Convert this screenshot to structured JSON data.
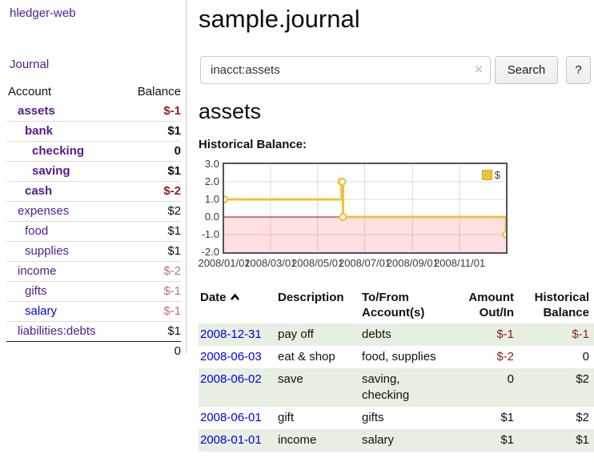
{
  "sidebar": {
    "brand": "hledger-web",
    "nav_journal": "Journal",
    "accounts_table": {
      "headers": {
        "account": "Account",
        "balance": "Balance"
      },
      "rows": [
        {
          "account": "assets",
          "balance": "$-1"
        },
        {
          "account": "bank",
          "balance": "$1"
        },
        {
          "account": "checking",
          "balance": "0"
        },
        {
          "account": "saving",
          "balance": "$1"
        },
        {
          "account": "cash",
          "balance": "$-2"
        },
        {
          "account": "expenses",
          "balance": "$2"
        },
        {
          "account": "food",
          "balance": "$1"
        },
        {
          "account": "supplies",
          "balance": "$1"
        },
        {
          "account": "income",
          "balance": "$-2"
        },
        {
          "account": "gifts",
          "balance": "$-1"
        },
        {
          "account": "salary",
          "balance": "$-1"
        },
        {
          "account": "liabilities:debts",
          "balance": "$1"
        }
      ],
      "total": "0"
    }
  },
  "main": {
    "title": "sample.journal",
    "search": {
      "value": "inacct:assets",
      "clear_icon": "×",
      "search_button": "Search",
      "help_button": "?"
    },
    "account_heading": "assets",
    "chart_label": "Historical Balance:"
  },
  "chart_data": {
    "type": "line",
    "style": "step",
    "title": "Historical Balance:",
    "xlim": [
      "2008/01/01",
      "2008/12/31"
    ],
    "ylim": [
      -2.0,
      3.0
    ],
    "y_ticks": [
      {
        "v": 3,
        "label": "3.0"
      },
      {
        "v": 2,
        "label": "2.0"
      },
      {
        "v": 1,
        "label": "1.0"
      },
      {
        "v": 0,
        "label": "0.0"
      },
      {
        "v": -1,
        "label": "-1.0"
      },
      {
        "v": -2,
        "label": "-2.0"
      }
    ],
    "x_ticks": [
      "2008/01/01",
      "2008/03/01",
      "2008/05/01",
      "2008/07/01",
      "2008/09/01",
      "2008/11/01"
    ],
    "series": [
      {
        "name": "$",
        "color": "#edc240",
        "points": [
          [
            "2008/01/01",
            1
          ],
          [
            "2008/06/01",
            2
          ],
          [
            "2008/06/02",
            2
          ],
          [
            "2008/06/03",
            0
          ],
          [
            "2008/12/31",
            -1
          ]
        ]
      }
    ],
    "legend_position": "top-right",
    "grid": true,
    "grid_color": "#dcdcdc",
    "zero_line_color": "#8b1010",
    "negative_region_fill": "rgba(255,0,0,0.12)"
  },
  "register_table": {
    "headers": {
      "date": "Date",
      "description": "Description",
      "accounts": "To/From Account(s)",
      "amount": "Amount Out/In",
      "balance": "Historical Balance"
    },
    "rows": [
      {
        "date": "2008-12-31",
        "description": "pay off",
        "accounts": "debts",
        "amount": "$-1",
        "balance": "$-1"
      },
      {
        "date": "2008-06-03",
        "description": "eat & shop",
        "accounts": "food, supplies",
        "amount": "$-2",
        "balance": "0"
      },
      {
        "date": "2008-06-02",
        "description": "save",
        "accounts": "saving, checking",
        "amount": "0",
        "balance": "$2"
      },
      {
        "date": "2008-06-01",
        "description": "gift",
        "accounts": "gifts",
        "amount": "$1",
        "balance": "$2"
      },
      {
        "date": "2008-01-01",
        "description": "income",
        "accounts": "salary",
        "amount": "$1",
        "balance": "$1"
      }
    ]
  }
}
